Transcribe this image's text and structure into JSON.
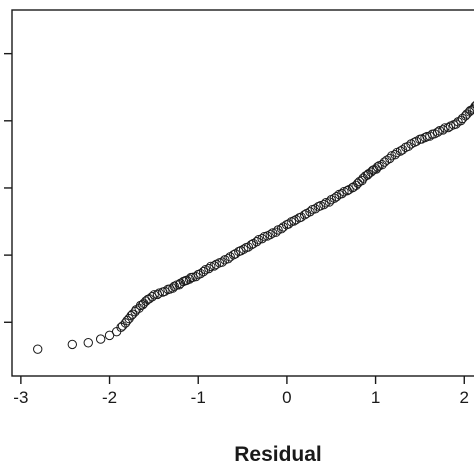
{
  "chart_data": {
    "type": "scatter",
    "xlabel": "Residual",
    "ylabel": "",
    "xlim": [
      -3.1,
      2.2
    ],
    "ylim": [
      -0.06,
      1.03
    ],
    "x_ticks": [
      -3,
      -2,
      -1,
      0,
      1,
      2
    ],
    "x_tick_labels": [
      "-3",
      "-2",
      "-1",
      "0",
      "1",
      "2"
    ],
    "y_ticks": [
      0.1,
      0.3,
      0.5,
      0.7,
      0.9
    ],
    "grid": false,
    "legend": "none",
    "marker": "open-circle",
    "colors": {
      "marker_stroke": "#1a1a1a",
      "axis": "#1a1a1a"
    },
    "points": [
      [
        -2.81,
        0.02
      ],
      [
        -2.42,
        0.034
      ],
      [
        -2.24,
        0.039
      ],
      [
        -2.1,
        0.05
      ],
      [
        -2.0,
        0.061
      ],
      [
        -1.92,
        0.072
      ],
      [
        -1.87,
        0.085
      ],
      [
        -1.82,
        0.098
      ],
      [
        -1.78,
        0.111
      ],
      [
        -1.74,
        0.124
      ],
      [
        -1.7,
        0.137
      ],
      [
        -1.65,
        0.15
      ],
      [
        -1.59,
        0.163
      ],
      [
        -1.52,
        0.176
      ],
      [
        -1.46,
        0.183
      ],
      [
        -1.4,
        0.19
      ],
      [
        -1.34,
        0.198
      ],
      [
        -1.27,
        0.207
      ],
      [
        -1.2,
        0.216
      ],
      [
        -1.13,
        0.225
      ],
      [
        -1.06,
        0.234
      ],
      [
        -1.0,
        0.242
      ],
      [
        -0.94,
        0.251
      ],
      [
        -0.88,
        0.26
      ],
      [
        -0.82,
        0.268
      ],
      [
        -0.76,
        0.277
      ],
      [
        -0.7,
        0.286
      ],
      [
        -0.64,
        0.295
      ],
      [
        -0.58,
        0.304
      ],
      [
        -0.52,
        0.313
      ],
      [
        -0.46,
        0.322
      ],
      [
        -0.4,
        0.331
      ],
      [
        -0.34,
        0.34
      ],
      [
        -0.28,
        0.349
      ],
      [
        -0.22,
        0.357
      ],
      [
        -0.16,
        0.366
      ],
      [
        -0.1,
        0.375
      ],
      [
        -0.04,
        0.384
      ],
      [
        0.02,
        0.393
      ],
      [
        0.08,
        0.402
      ],
      [
        0.14,
        0.411
      ],
      [
        0.2,
        0.42
      ],
      [
        0.26,
        0.429
      ],
      [
        0.32,
        0.438
      ],
      [
        0.38,
        0.447
      ],
      [
        0.44,
        0.456
      ],
      [
        0.5,
        0.465
      ],
      [
        0.56,
        0.474
      ],
      [
        0.62,
        0.483
      ],
      [
        0.68,
        0.492
      ],
      [
        0.74,
        0.501
      ],
      [
        0.8,
        0.514
      ],
      [
        0.86,
        0.529
      ],
      [
        0.92,
        0.542
      ],
      [
        0.98,
        0.554
      ],
      [
        1.04,
        0.566
      ],
      [
        1.1,
        0.577
      ],
      [
        1.16,
        0.588
      ],
      [
        1.22,
        0.599
      ],
      [
        1.28,
        0.61
      ],
      [
        1.34,
        0.621
      ],
      [
        1.4,
        0.631
      ],
      [
        1.46,
        0.639
      ],
      [
        1.52,
        0.646
      ],
      [
        1.58,
        0.653
      ],
      [
        1.64,
        0.66
      ],
      [
        1.7,
        0.666
      ],
      [
        1.76,
        0.673
      ],
      [
        1.82,
        0.68
      ],
      [
        1.88,
        0.688
      ],
      [
        1.93,
        0.697
      ],
      [
        1.98,
        0.707
      ],
      [
        2.03,
        0.72
      ],
      [
        2.09,
        0.733
      ],
      [
        2.17,
        0.75
      ]
    ]
  }
}
